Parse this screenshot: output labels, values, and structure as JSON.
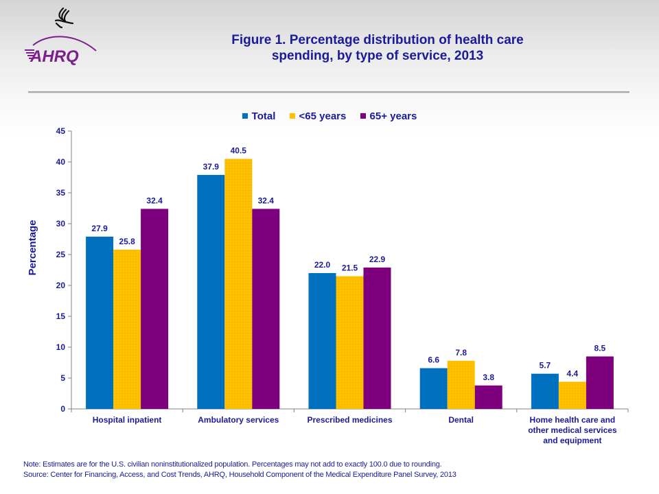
{
  "header": {
    "logo_text": "AHRQ",
    "logo_icon": "hhs-eagle-icon",
    "title_line1": "Figure 1. Percentage distribution of health care",
    "title_line2": "spending, by type of service, 2013"
  },
  "colors": {
    "text": "#1a1a9c",
    "total": "#0070c0",
    "under65": "#ffc000",
    "over65": "#7f007f",
    "logo": "#7b1f8c"
  },
  "chart_data": {
    "type": "bar",
    "title": "Figure 1. Percentage distribution of health care spending, by type of service, 2013",
    "xlabel": "",
    "ylabel": "Percentage",
    "ylim": [
      0,
      45
    ],
    "yticks": [
      0,
      5,
      10,
      15,
      20,
      25,
      30,
      35,
      40,
      45
    ],
    "grid": false,
    "legend_position": "top-center",
    "categories": [
      [
        "Hospital inpatient"
      ],
      [
        "Ambulatory services"
      ],
      [
        "Prescribed medicines"
      ],
      [
        "Dental"
      ],
      [
        "Home health care and",
        "other medical services",
        "and equipment"
      ]
    ],
    "series": [
      {
        "name": "Total",
        "color": "#0070c0",
        "values": [
          27.9,
          37.9,
          22.0,
          6.6,
          5.7
        ],
        "labels": [
          "27.9",
          "37.9",
          "22.0",
          "6.6",
          "5.7"
        ]
      },
      {
        "name": "<65 years",
        "color": "#ffc000",
        "values": [
          25.8,
          40.5,
          21.5,
          7.8,
          4.4
        ],
        "labels": [
          "25.8",
          "40.5",
          "21.5",
          "7.8",
          "4.4"
        ]
      },
      {
        "name": "65+ years",
        "color": "#7f007f",
        "values": [
          32.4,
          32.4,
          22.9,
          3.8,
          8.5
        ],
        "labels": [
          "32.4",
          "32.4",
          "22.9",
          "3.8",
          "8.5"
        ]
      }
    ]
  },
  "legend": [
    {
      "label": "Total",
      "color": "#0070c0"
    },
    {
      "label": "<65 years",
      "color": "#ffc000"
    },
    {
      "label": "65+ years",
      "color": "#7f007f"
    }
  ],
  "footnote": {
    "note": "Note: Estimates are for the U.S. civilian noninstitutionalized population. Percentages may not add to  exactly 100.0 due to rounding.",
    "source": "Source: Center for Financing, Access, and Cost Trends, AHRQ, Household Component of the Medical Expenditure Panel Survey,  2013"
  }
}
